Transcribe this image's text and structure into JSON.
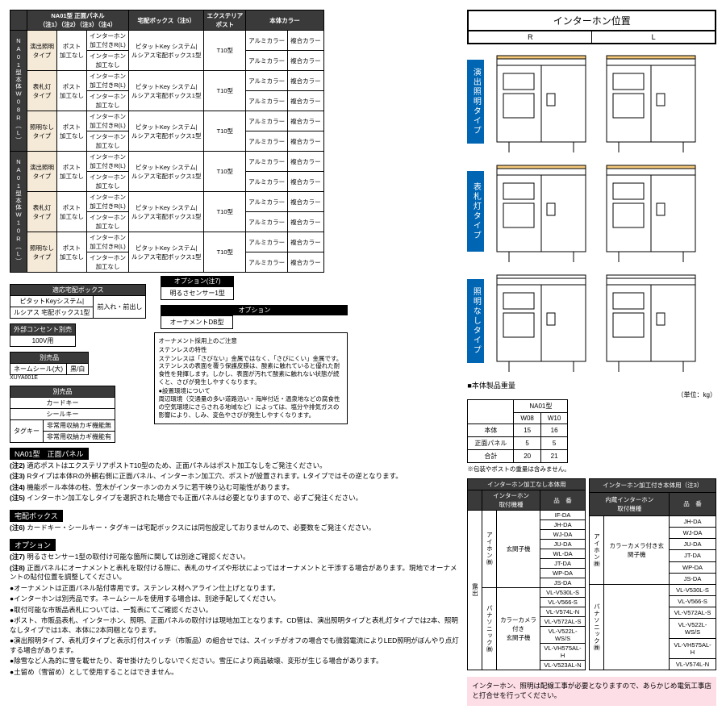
{
  "mainTable": {
    "headers": {
      "blank": "",
      "panel": "NA01型 正面パネル\n（注1）（注2）（注3）（注4）",
      "box": "宅配ボックス（注5）",
      "post": "エクステリア\nポスト",
      "body": "本体カラー"
    },
    "groups": [
      {
        "label": "NA01型本体W08R（L）",
        "types": [
          "演出照明\nタイプ",
          "表札灯\nタイプ",
          "照明なし\nタイプ"
        ]
      },
      {
        "label": "NA01型本体W10R（L）",
        "types": [
          "演出照明\nタイプ",
          "表札灯\nタイプ",
          "照明なし\nタイプ"
        ]
      }
    ],
    "postCol": "ポスト\n加工なし",
    "intLines": [
      "インターホン\n加工付きR(L)",
      "インターホン\n加工なし"
    ],
    "boxLines": "ピタットKey システム|\nルシアス宅配ボックス1型",
    "postType": "T10型",
    "colors": [
      "アルミカラー",
      "複合カラー"
    ]
  },
  "smallTables": {
    "compat": {
      "h": "適応宅配ボックス",
      "r1a": "ピタットKeyシステム|",
      "r1b": "前入れ・前出し",
      "r2": "ルシアス 宅配ボックス1型"
    },
    "outlet": {
      "h": "外部コンセント別売",
      "v": "100V用"
    },
    "seal": {
      "h": "別売品",
      "r1": "ネームシール(大)",
      "r2": "黒/白",
      "code": "XUYA001E"
    },
    "parts": {
      "h": "別売品",
      "items": [
        "カードキー",
        "シールキー"
      ],
      "tag": "タグキー",
      "tagopts": [
        "非常用収納カギ機能無",
        "非常用収納カギ機能有"
      ]
    }
  },
  "options": {
    "h1": "オプション(注7)",
    "v1": "明るさセンサー1型",
    "h2": "オプション",
    "v2": "オーナメントDB型"
  },
  "caution": {
    "title": "オーナメント採用上のご注意",
    "sub1": "ステンレスの特性",
    "p1": "ステンレスは「さびない」金属ではなく、「さびにくい」金属です。ステンレスの表面を覆う保護皮膜は、酸素に触れていると優れた耐食性を発揮します。しかし、表面が汚れて酸素に触れない状態が続くと、さびが発生しやすくなります。",
    "sub2": "●設置環境について",
    "p2": "周辺環境（交通量の多い道路沿い・海岸付近・温泉地などの腐食性の空気環境にさらされる地域など）によっては、塩分や排気ガスの影響により、しみ、変色やさびが発生しやすくなります。"
  },
  "notesSec": [
    {
      "title": "NA01型　正面パネル",
      "items": [
        {
          "n": "(注2)",
          "t": "適応ポストはエクステリアポストT10型のため、正面パネルはポスト加工なしをご発注ください。"
        },
        {
          "n": "(注3)",
          "t": "Rタイプは本体Rの外観右側に正面パネル、インターホン加工穴、ポストが設置されます。Lタイプではその逆となります。"
        },
        {
          "n": "(注4)",
          "t": "機能ポール本体の柱、笠木がインターホンのカメラに若干映り込む可能性があります。"
        },
        {
          "n": "(注5)",
          "t": "インターホン加工なしタイプを選択された場合でも正面パネルは必要となりますので、必ずご発注ください。"
        }
      ]
    },
    {
      "title": "宅配ボックス",
      "items": [
        {
          "n": "(注6)",
          "t": "カードキー・シールキー・タグキーは宅配ボックスには同包設定しておりませんので、必要数をご発注ください。"
        }
      ]
    },
    {
      "title": "オプション",
      "items": [
        {
          "n": "(注7)",
          "t": "明るさセンサー1型の取付け可能な箇所に関しては別途ご確認ください。"
        },
        {
          "n": "(注8)",
          "t": "正面パネルにオーナメントと表札を取付ける際に、表札のサイズや形状によってはオーナメントと干渉する場合があります。現地でオーナメントの貼付位置を調整してください。"
        }
      ]
    }
  ],
  "bullets": [
    "オーナメントは正面パネル貼付専用です。ステンレス材ヘアライン仕上げとなります。",
    "インターホンは別売品です。ネームシールを使用する場合は、別途手配してください。",
    "取付可能な市販品表札については、一覧表にてご確認ください。",
    "ポスト、市販品表札、インターホン、照明、正面パネルの取付けは現地加工となります。CD管は、演出照明タイプと表札灯タイプでは2本、照明なしタイプでは1本、本体に2本同梱となります。",
    "演出照明タイプ、表札灯タイプと表示灯付スイッチ（市販品）の組合せでは、スイッチがオフの場合でも微弱電流によりLED照明がぼんやり点灯する場合があります。",
    "除雪など人為的に雪を載せたり、寄せ掛けたりしないでください。雪圧により商品破壊、変形が生じる場合があります。",
    "土留め（雪留め）として使用することはできません。"
  ],
  "intercom": {
    "title": "インターホン位置",
    "R": "R",
    "L": "L",
    "types": [
      "演出照明タイプ",
      "表札灯タイプ",
      "照明なしタイプ"
    ]
  },
  "weight": {
    "title": "■本体製品重量",
    "unit": "（単位：kg）",
    "model": "NA01型",
    "cols": [
      "W08",
      "W10"
    ],
    "rows": [
      [
        "本体",
        "15",
        "16"
      ],
      [
        "正面パネル",
        "5",
        "5"
      ],
      [
        "合計",
        "20",
        "21"
      ]
    ],
    "note": "※包装やポストの重量は含みません。"
  },
  "compat": {
    "left": {
      "h": "インターホン加工なし本体用",
      "sh1": "インターホン\n取付機種",
      "sh2": "品　番",
      "mfr1": "アイホン㈱",
      "cat1": "玄関子機",
      "items1": [
        "IF-DA",
        "JH-DA",
        "WJ-DA",
        "JU-DA",
        "WL-DA",
        "JT-DA",
        "WP-DA",
        "JS-DA"
      ],
      "mfr2": "パナソニック㈱",
      "cat2": "カラーカメラ付き\n玄関子機",
      "items2": [
        "VL-V530L-S",
        "VL-V566-S",
        "VL-V574L-N",
        "VL-V572AL-S",
        "VL-V522L-WS/S",
        "VL-VH575AL-H",
        "VL-V523AL-N"
      ],
      "side": "露出"
    },
    "right": {
      "h": "インターホン加工付き本体用（注3）",
      "sh1": "内蔵インターホン\n取付機種",
      "sh2": "品　番",
      "mfr1": "アイホン㈱",
      "cat1": "カラーカメラ付き玄関子機",
      "items1": [
        "JH-DA",
        "WJ-DA",
        "JU-DA",
        "JT-DA",
        "WP-DA",
        "JS-DA"
      ],
      "mfr2": "パナソニック㈱",
      "items2": [
        "VL-V530L-S",
        "VL-V566-S",
        "VL-V572AL-S",
        "VL-V522L-WS/S",
        "VL-VH575AL-H",
        "VL-V574L-N"
      ]
    }
  },
  "pinkNote": "インターホン、照明は配線工事が必要となりますので、あらかじめ電気工事店と打合せを行ってください。"
}
